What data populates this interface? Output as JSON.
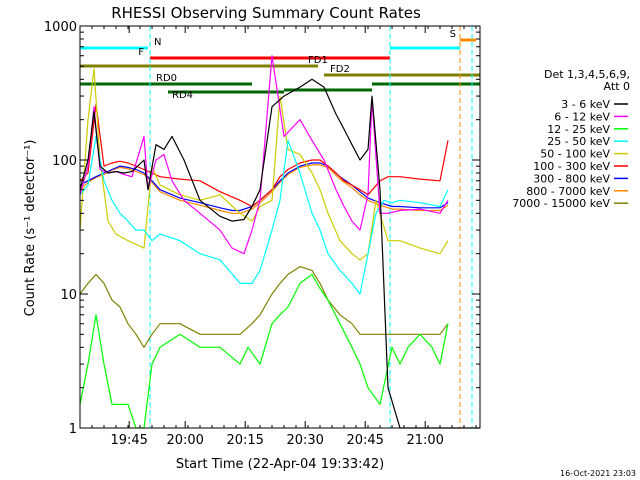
{
  "chart_data": {
    "type": "line",
    "title": "RHESSI Observing Summary Count Rates",
    "xlabel": "Start Time (22-Apr-04 19:33:42)",
    "ylabel": "Count Rate (s⁻¹ detector⁻¹)",
    "x_unit": "minutes since 19:33:42",
    "xlim": [
      0,
      100
    ],
    "ylim": [
      1,
      1000
    ],
    "yscale": "log",
    "x_ticks": [
      {
        "x": 12.3,
        "label": "19:45"
      },
      {
        "x": 26.3,
        "label": "20:00"
      },
      {
        "x": 41.3,
        "label": "20:15"
      },
      {
        "x": 56.3,
        "label": "20:30"
      },
      {
        "x": 71.3,
        "label": "20:45"
      },
      {
        "x": 86.3,
        "label": "21:00"
      }
    ],
    "y_ticks": [
      {
        "y": 1,
        "label": "1"
      },
      {
        "y": 10,
        "label": "10"
      },
      {
        "y": 100,
        "label": "100"
      },
      {
        "y": 1000,
        "label": "1000"
      }
    ],
    "legend": {
      "header": [
        "Det 1,3,4,5,6,9,",
        "Att 0"
      ],
      "placement": "right"
    },
    "series": [
      {
        "name": "3 - 6 keV",
        "color": "#000000",
        "x": [
          0,
          2,
          3.5,
          5,
          7,
          9,
          11,
          13,
          16,
          17,
          19,
          21,
          23,
          26,
          30,
          35,
          38,
          41,
          43,
          45,
          48,
          51,
          55,
          58,
          61,
          64,
          66,
          68,
          70,
          72,
          73,
          75,
          77,
          80,
          85,
          90,
          95,
          100
        ],
        "y": [
          60,
          100,
          230,
          90,
          80,
          82,
          80,
          82,
          100,
          60,
          130,
          120,
          150,
          100,
          50,
          38,
          35,
          36,
          45,
          60,
          250,
          300,
          350,
          400,
          350,
          220,
          170,
          130,
          100,
          120,
          300,
          60,
          2,
          1,
          1,
          1,
          1,
          1
        ]
      },
      {
        "name": "6 - 12 keV",
        "color": "#ff00ff",
        "x": [
          0,
          2,
          3.5,
          5,
          7,
          9,
          11,
          13,
          16,
          17,
          19,
          21,
          23,
          26,
          30,
          35,
          38,
          41,
          43,
          45,
          48,
          51,
          55,
          58,
          61,
          64,
          66,
          68,
          70,
          72,
          73,
          75,
          77,
          80,
          85,
          90,
          92
        ],
        "y": [
          55,
          90,
          250,
          85,
          80,
          82,
          78,
          75,
          150,
          60,
          100,
          110,
          70,
          50,
          40,
          30,
          22,
          20,
          30,
          50,
          600,
          150,
          200,
          140,
          100,
          60,
          45,
          35,
          30,
          55,
          280,
          40,
          40,
          42,
          43,
          40,
          50
        ]
      },
      {
        "name": "12 - 25 keV",
        "color": "#00ff00",
        "x": [
          0,
          2,
          4,
          6,
          8,
          10,
          12,
          14,
          16,
          18,
          20,
          25,
          30,
          35,
          40,
          42,
          45,
          48,
          50,
          52,
          55,
          58,
          60,
          62,
          65,
          68,
          70,
          72,
          75,
          78,
          80,
          82,
          85,
          88,
          90,
          92
        ],
        "y": [
          1.5,
          3,
          7,
          3,
          1.5,
          1.5,
          1.5,
          1,
          1,
          3,
          4,
          5,
          4,
          4,
          3,
          4,
          3,
          6,
          7,
          8,
          12,
          14,
          11,
          9,
          6,
          4,
          3,
          2,
          1.5,
          4,
          3,
          4,
          5,
          4,
          3,
          6
        ]
      },
      {
        "name": "25 - 50 keV",
        "color": "#00ffff",
        "x": [
          0,
          2,
          4,
          6,
          8,
          10,
          12,
          14,
          16,
          18,
          20,
          25,
          30,
          35,
          40,
          43,
          45,
          48,
          50,
          52,
          55,
          58,
          60,
          62,
          65,
          68,
          70,
          72,
          74,
          76,
          78,
          80,
          85,
          90,
          92
        ],
        "y": [
          55,
          65,
          150,
          70,
          50,
          40,
          35,
          30,
          30,
          25,
          28,
          25,
          20,
          18,
          12,
          12,
          15,
          30,
          50,
          140,
          80,
          40,
          30,
          20,
          15,
          12,
          10,
          20,
          40,
          50,
          48,
          50,
          48,
          45,
          60
        ]
      },
      {
        "name": "50 - 100 keV",
        "color": "#cccc00",
        "x": [
          0,
          2,
          3.5,
          5,
          7,
          9,
          12,
          16,
          18,
          20,
          25,
          30,
          35,
          40,
          43,
          45,
          48,
          50,
          52,
          55,
          58,
          60,
          62,
          65,
          68,
          70,
          72,
          74,
          77,
          80,
          85,
          90,
          92
        ],
        "y": [
          30,
          200,
          480,
          100,
          35,
          28,
          25,
          22,
          90,
          65,
          55,
          50,
          55,
          40,
          35,
          45,
          50,
          300,
          120,
          110,
          80,
          60,
          40,
          25,
          20,
          18,
          20,
          50,
          25,
          25,
          22,
          20,
          25
        ]
      },
      {
        "name": "100 - 300 keV",
        "color": "#ff0000",
        "x": [
          0,
          2,
          4,
          6,
          8,
          10,
          12,
          14,
          16,
          18,
          20,
          25,
          30,
          35,
          40,
          43,
          45,
          48,
          50,
          52,
          55,
          58,
          60,
          62,
          64,
          66,
          68,
          70,
          72,
          75,
          77,
          80,
          85,
          90,
          92
        ],
        "y": [
          70,
          80,
          260,
          90,
          95,
          98,
          95,
          90,
          85,
          80,
          75,
          72,
          70,
          58,
          50,
          45,
          50,
          60,
          75,
          85,
          95,
          100,
          100,
          90,
          80,
          70,
          65,
          60,
          55,
          70,
          75,
          75,
          72,
          70,
          140
        ]
      },
      {
        "name": "300 - 800 keV",
        "color": "#0000ff",
        "x": [
          0,
          2,
          4,
          6,
          8,
          10,
          12,
          14,
          16,
          18,
          20,
          25,
          30,
          35,
          38,
          40,
          43,
          45,
          48,
          50,
          52,
          55,
          58,
          60,
          62,
          65,
          68,
          70,
          72,
          75,
          78,
          80,
          85,
          90,
          92
        ],
        "y": [
          65,
          70,
          75,
          80,
          85,
          90,
          88,
          85,
          80,
          70,
          60,
          52,
          48,
          44,
          42,
          42,
          45,
          50,
          60,
          70,
          80,
          90,
          95,
          95,
          90,
          75,
          65,
          58,
          52,
          48,
          45,
          45,
          44,
          44,
          48
        ]
      },
      {
        "name": "800 - 7000 keV",
        "color": "#ff8800",
        "x": [
          0,
          2,
          4,
          6,
          8,
          10,
          12,
          14,
          16,
          18,
          20,
          25,
          30,
          35,
          38,
          40,
          43,
          45,
          48,
          50,
          52,
          55,
          58,
          60,
          62,
          65,
          68,
          70,
          72,
          75,
          78,
          80,
          85,
          90,
          92
        ],
        "y": [
          60,
          68,
          74,
          78,
          84,
          88,
          86,
          82,
          78,
          68,
          58,
          50,
          46,
          42,
          40,
          40,
          43,
          48,
          58,
          68,
          78,
          88,
          92,
          92,
          88,
          72,
          62,
          55,
          50,
          46,
          43,
          43,
          42,
          42,
          46
        ]
      },
      {
        "name": "7000 - 15000 keV",
        "color": "#808000",
        "x": [
          0,
          2,
          4,
          6,
          8,
          10,
          12,
          14,
          16,
          18,
          20,
          25,
          30,
          35,
          38,
          40,
          43,
          45,
          48,
          50,
          52,
          55,
          58,
          60,
          62,
          65,
          68,
          70,
          72,
          75,
          78,
          80,
          85,
          90,
          92
        ],
        "y": [
          10,
          12,
          14,
          12,
          9,
          8,
          6,
          5,
          4,
          5,
          6,
          6,
          5,
          5,
          5,
          5,
          6,
          7,
          10,
          12,
          14,
          16,
          15,
          12,
          9,
          7,
          6,
          5,
          5,
          5,
          5,
          5,
          5,
          5,
          6
        ]
      }
    ],
    "flag_bars": [
      {
        "label": "N",
        "color": "#00ffff",
        "x0": 0,
        "x1": 17
      },
      {
        "label": "",
        "color": "#00ffff",
        "x0": 77.5,
        "x1": 95
      },
      {
        "label": "F",
        "color": "#ff0000",
        "x0": 17.5,
        "x1": 77.5
      },
      {
        "label": "S",
        "color": "#ff8800",
        "x0": 95,
        "x1": 99
      },
      {
        "label": "FD1",
        "color": "#808000",
        "x0": 0,
        "x1": 59.5
      },
      {
        "label": "FD2",
        "color": "#808000",
        "x0": 61,
        "x1": 100
      },
      {
        "label": "RD0",
        "color": "#006600",
        "x0": 0,
        "x1": 43
      },
      {
        "label": "",
        "color": "#006600",
        "x0": 51,
        "x1": 73
      },
      {
        "label": "RD4",
        "color": "#006600",
        "x0": 22,
        "x1": 51
      },
      {
        "label": "",
        "color": "#006600",
        "x0": 73,
        "x1": 100
      }
    ],
    "vlines": [
      {
        "x": 17.5,
        "color": "#00ffff"
      },
      {
        "x": 77.5,
        "color": "#00ffff"
      },
      {
        "x": 95,
        "color": "#ff8800"
      },
      {
        "x": 98,
        "color": "#00ffff"
      }
    ]
  },
  "footer_timestamp": "16-Oct-2021 23:03"
}
